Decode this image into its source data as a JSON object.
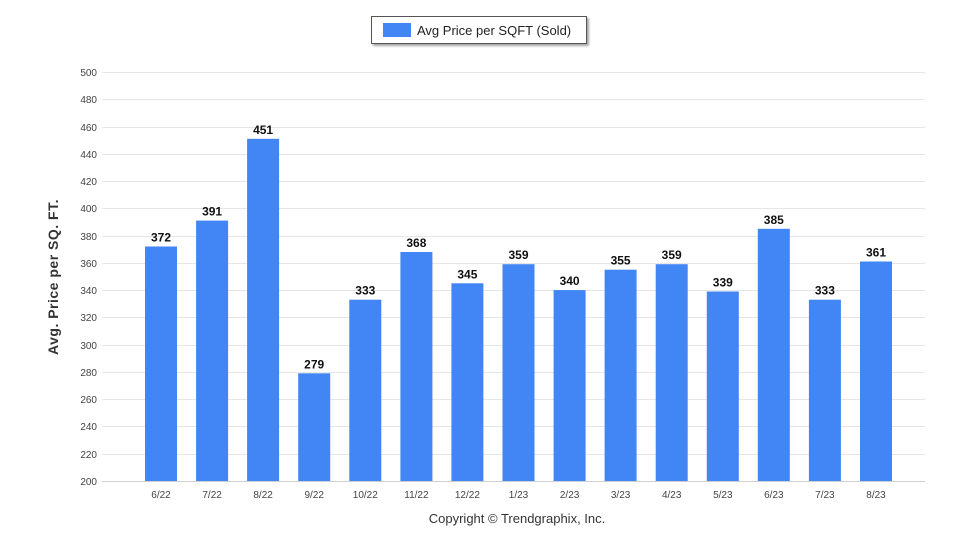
{
  "legend": {
    "label": "Avg Price per SQFT (Sold)",
    "color": "#4285f4"
  },
  "footer": {
    "copyright": "Copyright © Trendgraphix, Inc."
  },
  "chart_data": {
    "type": "bar",
    "title": "",
    "xlabel": "",
    "ylabel": "Avg. Price per SQ. FT.",
    "ylim": [
      200,
      500
    ],
    "yticks": [
      200,
      220,
      240,
      260,
      280,
      300,
      320,
      340,
      360,
      380,
      400,
      420,
      440,
      460,
      480,
      500
    ],
    "grid": true,
    "legend_position": "top-center",
    "categories": [
      "6/22",
      "7/22",
      "8/22",
      "9/22",
      "10/22",
      "11/22",
      "12/22",
      "1/23",
      "2/23",
      "3/23",
      "4/23",
      "5/23",
      "6/23",
      "7/23",
      "8/23"
    ],
    "series": [
      {
        "name": "Avg Price per SQFT (Sold)",
        "color": "#4285f4",
        "values": [
          372,
          391,
          451,
          279,
          333,
          368,
          345,
          359,
          340,
          355,
          359,
          339,
          385,
          333,
          361
        ]
      }
    ]
  }
}
